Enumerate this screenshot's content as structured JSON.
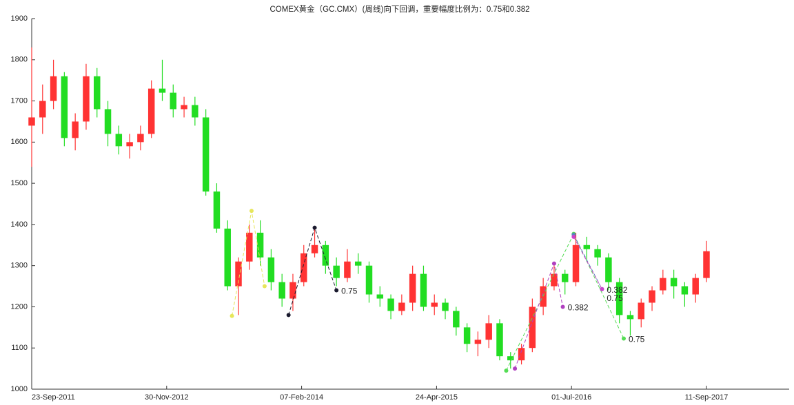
{
  "chart_data": {
    "type": "candlestick",
    "title": "COMEX黄金（GC.CMX）(周线)向下回调，重要幅度比例为：0.75和0.382",
    "up_color": "#ff3333",
    "down_color": "#22dd22",
    "xlim": [
      0,
      348
    ],
    "xticks": [
      {
        "value": 0,
        "label": "23-Sep-2011"
      },
      {
        "value": 62,
        "label": "30-Nov-2012"
      },
      {
        "value": 124,
        "label": "07-Feb-2014"
      },
      {
        "value": 186,
        "label": "24-Apr-2015"
      },
      {
        "value": 248,
        "label": "01-Jul-2016"
      },
      {
        "value": 310,
        "label": "11-Sep-2017"
      }
    ],
    "ylim": [
      1000,
      1900
    ],
    "yticks": [
      1000,
      1100,
      1200,
      1300,
      1400,
      1500,
      1600,
      1700,
      1800,
      1900
    ],
    "x": [
      0,
      5,
      10,
      15,
      20,
      25,
      30,
      35,
      40,
      45,
      50,
      55,
      60,
      65,
      70,
      75,
      80,
      85,
      90,
      95,
      100,
      105,
      110,
      115,
      120,
      125,
      130,
      135,
      140,
      145,
      150,
      155,
      160,
      165,
      170,
      175,
      180,
      185,
      190,
      195,
      200,
      205,
      210,
      215,
      220,
      225,
      230,
      235,
      240,
      245,
      250,
      255,
      260,
      265,
      270,
      275,
      280,
      285,
      290,
      295,
      300,
      305,
      310
    ],
    "open": [
      1640,
      1660,
      1700,
      1760,
      1610,
      1650,
      1760,
      1680,
      1620,
      1590,
      1600,
      1620,
      1730,
      1720,
      1680,
      1690,
      1660,
      1480,
      1390,
      1250,
      1310,
      1380,
      1320,
      1260,
      1220,
      1260,
      1330,
      1350,
      1300,
      1270,
      1310,
      1300,
      1230,
      1220,
      1190,
      1210,
      1280,
      1200,
      1210,
      1190,
      1150,
      1110,
      1120,
      1160,
      1080,
      1070,
      1100,
      1200,
      1250,
      1280,
      1260,
      1350,
      1340,
      1320,
      1260,
      1180,
      1170,
      1210,
      1240,
      1270,
      1250,
      1230,
      1270
    ],
    "high": [
      1830,
      1740,
      1800,
      1770,
      1670,
      1790,
      1780,
      1700,
      1640,
      1620,
      1640,
      1750,
      1800,
      1740,
      1710,
      1710,
      1680,
      1500,
      1410,
      1320,
      1400,
      1410,
      1340,
      1280,
      1280,
      1350,
      1390,
      1360,
      1320,
      1340,
      1330,
      1310,
      1250,
      1230,
      1230,
      1300,
      1300,
      1230,
      1220,
      1200,
      1160,
      1140,
      1180,
      1170,
      1090,
      1110,
      1220,
      1270,
      1300,
      1290,
      1380,
      1370,
      1350,
      1330,
      1270,
      1190,
      1220,
      1250,
      1290,
      1290,
      1260,
      1280,
      1360
    ],
    "low": [
      1540,
      1620,
      1680,
      1590,
      1580,
      1630,
      1660,
      1590,
      1570,
      1560,
      1580,
      1610,
      1700,
      1660,
      1660,
      1640,
      1470,
      1380,
      1240,
      1180,
      1290,
      1300,
      1240,
      1200,
      1190,
      1250,
      1320,
      1280,
      1250,
      1260,
      1280,
      1210,
      1200,
      1170,
      1180,
      1190,
      1190,
      1180,
      1170,
      1130,
      1090,
      1080,
      1100,
      1070,
      1050,
      1060,
      1090,
      1180,
      1240,
      1230,
      1250,
      1310,
      1300,
      1240,
      1160,
      1130,
      1150,
      1190,
      1230,
      1220,
      1200,
      1210,
      1260
    ],
    "close": [
      1660,
      1700,
      1760,
      1610,
      1650,
      1760,
      1680,
      1620,
      1590,
      1600,
      1620,
      1730,
      1720,
      1680,
      1690,
      1660,
      1480,
      1390,
      1250,
      1310,
      1380,
      1320,
      1260,
      1220,
      1260,
      1330,
      1350,
      1300,
      1270,
      1310,
      1300,
      1230,
      1220,
      1190,
      1210,
      1280,
      1200,
      1210,
      1190,
      1150,
      1110,
      1120,
      1160,
      1080,
      1070,
      1100,
      1200,
      1250,
      1280,
      1260,
      1350,
      1340,
      1320,
      1260,
      1180,
      1170,
      1210,
      1240,
      1270,
      1250,
      1230,
      1270,
      1335
    ],
    "swings": [
      {
        "color": "#e6e65a",
        "x": [
          92,
          101,
          107
        ],
        "y": [
          1178,
          1433,
          1250
        ]
      },
      {
        "color": "#1a1a2e",
        "x": [
          118,
          130,
          140
        ],
        "y": [
          1180,
          1392,
          1240
        ],
        "label": "0.75"
      },
      {
        "color": "#55dd55",
        "x": [
          218,
          249,
          272
        ],
        "y": [
          1045,
          1377,
          1123
        ],
        "label": "0.75"
      },
      {
        "color": "#b040c0",
        "x": [
          222,
          240,
          244
        ],
        "y": [
          1050,
          1305,
          1200
        ],
        "label": "0.382"
      },
      {
        "color": "#5588bb",
        "x": [
          249,
          262
        ],
        "y": [
          1375,
          1243
        ],
        "label": "0.382"
      },
      {
        "color": "#cc44cc",
        "x": [
          249,
          262
        ],
        "y": [
          1370,
          1243
        ],
        "label": "0.75"
      }
    ]
  }
}
